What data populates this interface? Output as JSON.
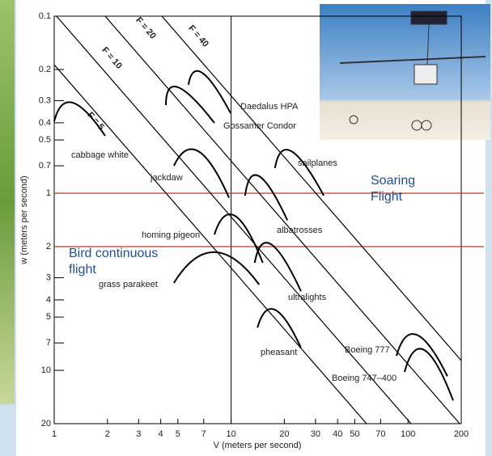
{
  "chart_data": {
    "type": "line",
    "x_label": "V (meters per second)",
    "y_label": "w (meters per second)",
    "xlog": true,
    "ylog": true,
    "y_inverted": true,
    "xlim": [
      1,
      200
    ],
    "ylim": [
      0.1,
      20
    ],
    "xticks": [
      1,
      2,
      3,
      4,
      5,
      7,
      10,
      20,
      30,
      40,
      50,
      70,
      100,
      200
    ],
    "yticks": [
      0.1,
      0.2,
      0.3,
      0.4,
      0.5,
      0.7,
      1,
      2,
      3,
      4,
      5,
      7,
      10,
      20
    ],
    "vlines": [
      10
    ],
    "hlines": [
      {
        "value": 1,
        "color": "#c0392b"
      },
      {
        "value": 2,
        "color": "#c0392b"
      }
    ],
    "annotations": [
      {
        "text": [
          "Soaring",
          "Flight"
        ],
        "color": "#1f4e9a"
      },
      {
        "text": [
          "Bird continuous",
          "flight"
        ],
        "color": "#1f4e9a"
      }
    ],
    "guide_lines": [
      {
        "name": "F = 5",
        "x": [
          1,
          58.3
        ],
        "values": [
          0.188,
          20
        ]
      },
      {
        "name": "F = 10",
        "x": [
          1.03,
          104
        ],
        "values": [
          0.1,
          20
        ]
      },
      {
        "name": "F = 20",
        "x": [
          1.94,
          196
        ],
        "values": [
          0.1,
          20
        ]
      },
      {
        "name": "F = 40",
        "x": [
          4.06,
          200
        ],
        "values": [
          0.1,
          8.8
        ]
      }
    ],
    "series": [
      {
        "name": "cabbage white",
        "color": "#000000",
        "x": [
          1.0,
          1.27,
          1.94
        ],
        "values": [
          0.393,
          0.308,
          0.474
        ]
      },
      {
        "name": "jackdaw",
        "color": "#000000",
        "x": [
          4.75,
          6.52,
          9.73
        ],
        "values": [
          0.7,
          0.579,
          1.06
        ]
      },
      {
        "name": "homing pigeon",
        "color": "#000000",
        "x": [
          8.05,
          10.5,
          15.1
        ],
        "values": [
          1.71,
          1.34,
          2.47
        ]
      },
      {
        "name": "grass parakeet",
        "color": "#000000",
        "x": [
          4.75,
          8.05,
          14.4
        ],
        "values": [
          3.21,
          2.15,
          3.28
        ]
      },
      {
        "name": "Daedalus HPA",
        "color": "#000000",
        "x": [
          5.74,
          6.87,
          9.94
        ],
        "values": [
          0.244,
          0.209,
          0.353
        ]
      },
      {
        "name": "Gossamer Condor",
        "color": "#000000",
        "x": [
          4.28,
          5.01,
          8.05
        ],
        "values": [
          0.318,
          0.252,
          0.401
        ]
      },
      {
        "name": "albatrosses",
        "color": "#000000",
        "x": [
          12.0,
          14.4,
          20.8
        ],
        "values": [
          1.03,
          0.801,
          1.42
        ]
      },
      {
        "name": "sailplanes",
        "color": "#000000",
        "x": [
          17.7,
          21.9,
          33.4
        ],
        "values": [
          0.721,
          0.579,
          1.03
        ]
      },
      {
        "name": "ultralights",
        "color": "#000000",
        "x": [
          13.6,
          16.8,
          24.8
        ],
        "values": [
          2.47,
          1.94,
          3.57
        ]
      },
      {
        "name": "pheasant",
        "color": "#000000",
        "x": [
          14.1,
          17.7,
          24.8
        ],
        "values": [
          5.73,
          4.55,
          7.45
        ]
      },
      {
        "name": "Boeing 777",
        "color": "#000000",
        "x": [
          86.1,
          112,
          167
        ],
        "values": [
          8.28,
          6.3,
          10.8
        ]
      },
      {
        "name": "Boeing 747–400",
        "color": "#000000",
        "x": [
          95.7,
          124,
          180
        ],
        "values": [
          10.2,
          7.69,
          14.8
        ]
      }
    ]
  }
}
